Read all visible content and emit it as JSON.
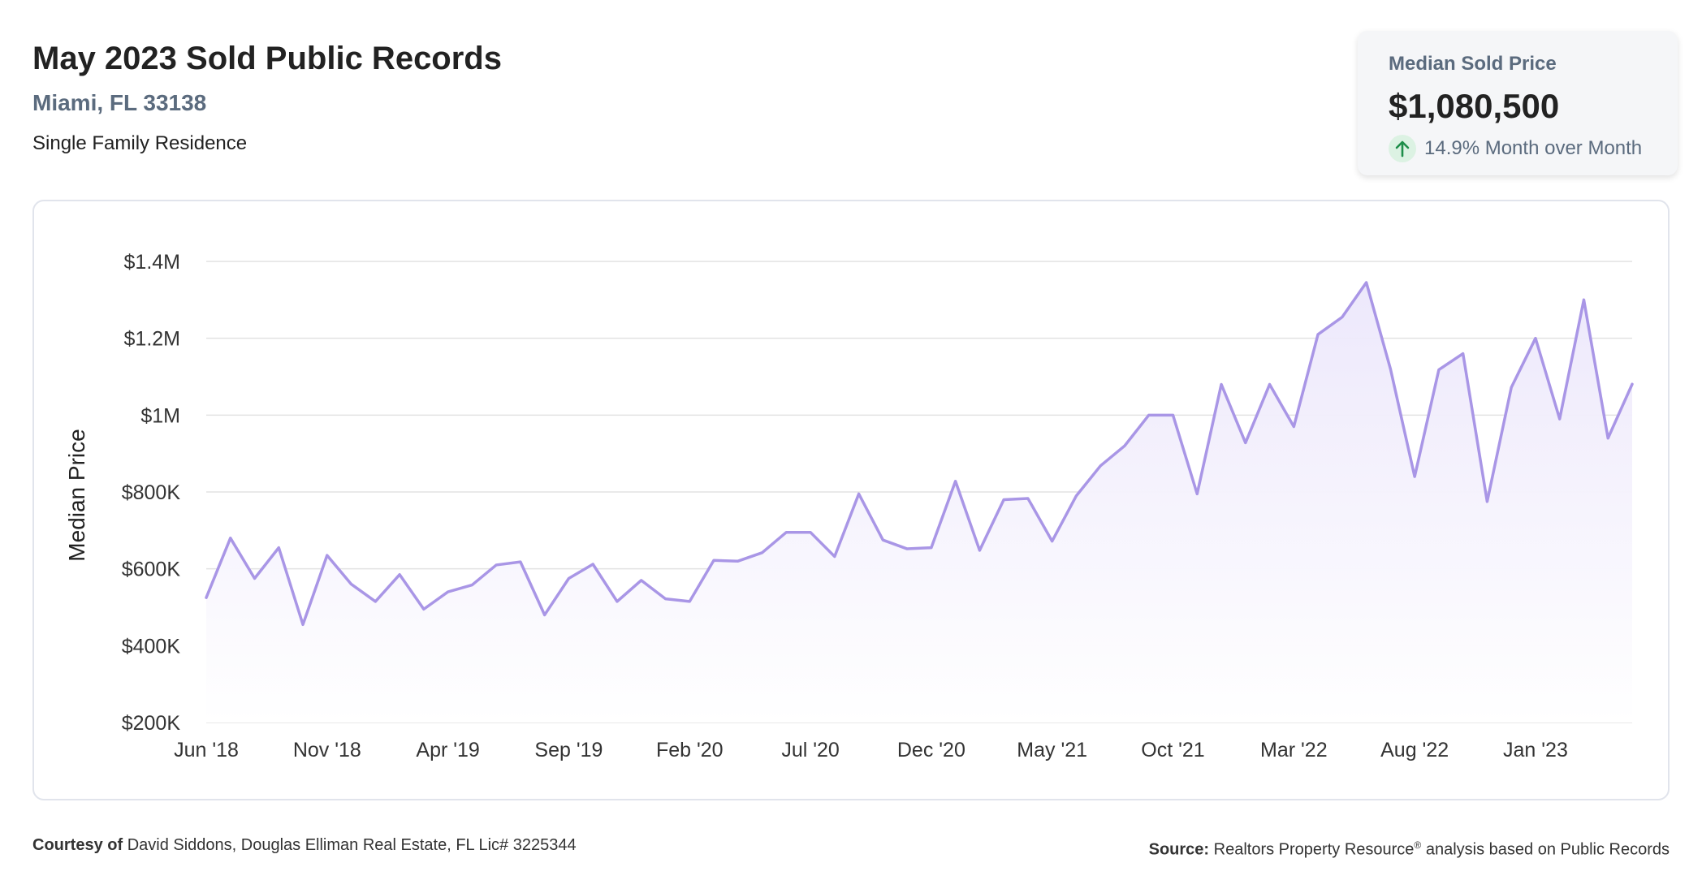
{
  "header": {
    "title": "May 2023 Sold Public Records",
    "location": "Miami, FL 33138",
    "property_type": "Single Family Residence"
  },
  "stat_card": {
    "label": "Median Sold Price",
    "value": "$1,080,500",
    "change": "14.9% Month over Month",
    "change_icon": "arrow-up-icon",
    "change_color": "#1e8e4a"
  },
  "colors": {
    "line": "#a996e6",
    "area_top": "#ece7fb",
    "area_bottom": "#ffffff",
    "grid": "#e2e2e2"
  },
  "chart_data": {
    "type": "area",
    "ylabel": "Median Price",
    "ylim": [
      200000,
      1400000
    ],
    "y_ticks": [
      {
        "value": 1400000,
        "label": "$1.4M"
      },
      {
        "value": 1200000,
        "label": "$1.2M"
      },
      {
        "value": 1000000,
        "label": "$1M"
      },
      {
        "value": 800000,
        "label": "$800K"
      },
      {
        "value": 600000,
        "label": "$600K"
      },
      {
        "value": 400000,
        "label": "$400K"
      },
      {
        "value": 200000,
        "label": "$200K"
      }
    ],
    "x_ticks": [
      {
        "index": 0,
        "label": "Jun '18"
      },
      {
        "index": 5,
        "label": "Nov '18"
      },
      {
        "index": 10,
        "label": "Apr '19"
      },
      {
        "index": 15,
        "label": "Sep '19"
      },
      {
        "index": 20,
        "label": "Feb '20"
      },
      {
        "index": 25,
        "label": "Jul '20"
      },
      {
        "index": 30,
        "label": "Dec '20"
      },
      {
        "index": 35,
        "label": "May '21"
      },
      {
        "index": 40,
        "label": "Oct '21"
      },
      {
        "index": 45,
        "label": "Mar '22"
      },
      {
        "index": 50,
        "label": "Aug '22"
      },
      {
        "index": 55,
        "label": "Jan '23"
      }
    ],
    "grid": true,
    "legend": "none",
    "series": [
      {
        "values": [
          525000,
          680000,
          575000,
          655000,
          455000,
          635000,
          560000,
          515000,
          585000,
          495000,
          540000,
          558000,
          610000,
          618000,
          480000,
          575000,
          612000,
          515000,
          570000,
          522000,
          515000,
          622000,
          620000,
          642000,
          695000,
          695000,
          632000,
          795000,
          675000,
          652000,
          655000,
          828000,
          648000,
          780000,
          783000,
          672000,
          790000,
          868000,
          920000,
          1000000,
          1000000,
          795000,
          1080000,
          928000,
          1080000,
          970000,
          1210000,
          1255000,
          1345000,
          1120000,
          840000,
          1118000,
          1160000,
          775000,
          1072000,
          1200000,
          990000,
          1300000,
          940000,
          1080500
        ]
      }
    ]
  },
  "footer": {
    "courtesy_label": "Courtesy of",
    "courtesy_text": "David Siddons, Douglas Elliman Real Estate, FL Lic# 3225344",
    "source_label": "Source:",
    "source_text_pre": "Realtors Property Resource",
    "source_reg": "®",
    "source_text_post": "analysis based on Public Records"
  }
}
